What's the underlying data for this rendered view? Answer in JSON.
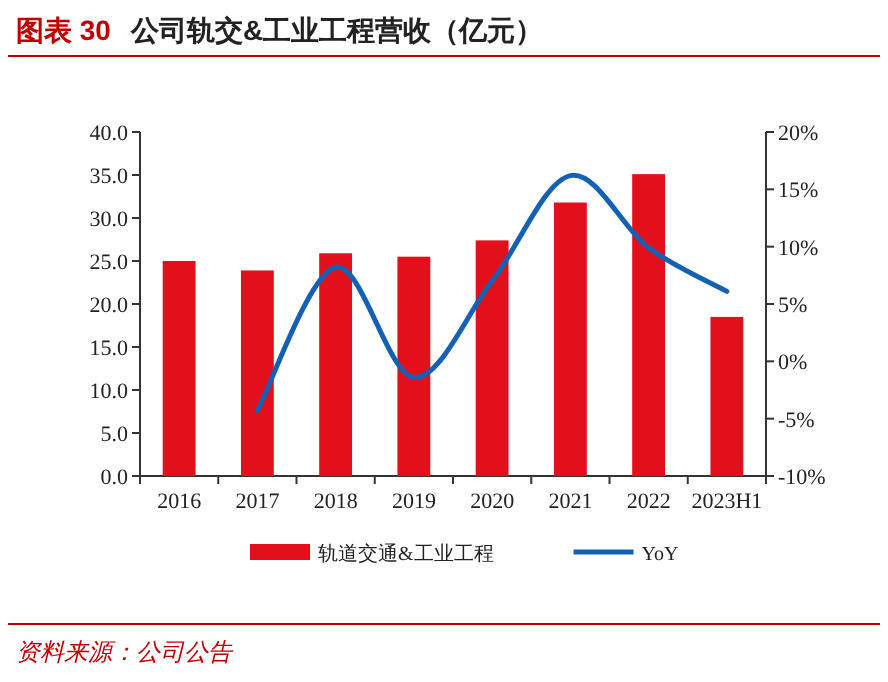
{
  "chart_data": {
    "type": "bar",
    "title": "图表 30   公司轨交&工业工程营收（亿元）",
    "categories": [
      "2016",
      "2017",
      "2018",
      "2019",
      "2020",
      "2021",
      "2022",
      "2023H1"
    ],
    "series": [
      {
        "name": "轨道交通&工业工程",
        "color": "#e3101c",
        "values": [
          25.0,
          23.9,
          25.9,
          25.5,
          27.4,
          31.8,
          35.1,
          18.5
        ]
      },
      {
        "name": "YoY",
        "type": "line",
        "axis": "y2",
        "color": "#1360b4",
        "values": [
          null,
          -4.3,
          8.2,
          -1.4,
          7.0,
          16.2,
          9.9,
          6.1
        ]
      }
    ],
    "ylim": [
      0,
      40
    ],
    "yticks": [
      {
        "value": 0,
        "label": "0.0"
      },
      {
        "value": 5,
        "label": "5.0"
      },
      {
        "value": 10,
        "label": "10.0"
      },
      {
        "value": 15,
        "label": "15.0"
      },
      {
        "value": 20,
        "label": "20.0"
      },
      {
        "value": 25,
        "label": "25.0"
      },
      {
        "value": 30,
        "label": "30.0"
      },
      {
        "value": 35,
        "label": "35.0"
      },
      {
        "value": 40,
        "label": "40.0"
      }
    ],
    "y2lim": [
      -10,
      20
    ],
    "y2ticks": [
      {
        "value": -10,
        "label": "-10%"
      },
      {
        "value": -5,
        "label": "-5%"
      },
      {
        "value": 0,
        "label": "0%"
      },
      {
        "value": 5,
        "label": "5%"
      },
      {
        "value": 10,
        "label": "10%"
      },
      {
        "value": 15,
        "label": "15%"
      },
      {
        "value": 20,
        "label": "20%"
      }
    ],
    "legend": "bottom",
    "grid": false,
    "annotations": [
      "资料来源：公司公告"
    ]
  }
}
